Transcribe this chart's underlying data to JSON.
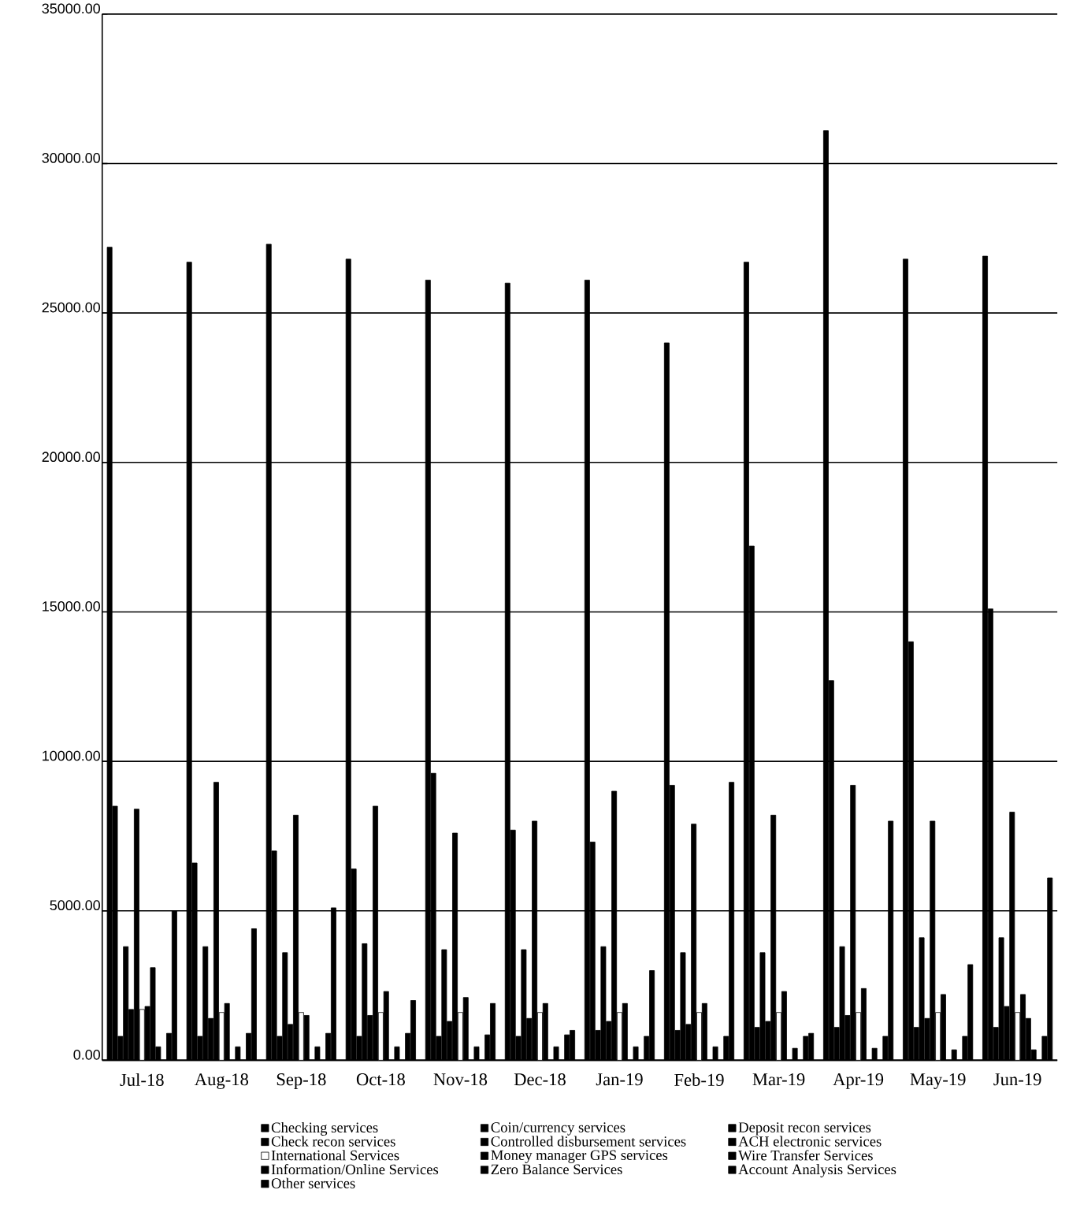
{
  "chart_data": {
    "type": "bar",
    "categories": [
      "Jul-18",
      "Aug-18",
      "Sep-18",
      "Oct-18",
      "Nov-18",
      "Dec-18",
      "Jan-19",
      "Feb-19",
      "Mar-19",
      "Apr-19",
      "May-19",
      "Jun-19"
    ],
    "ylim": [
      0,
      35000
    ],
    "yticks": [
      {
        "value": 0,
        "label": "0.00"
      },
      {
        "value": 5000,
        "label": "5000.00"
      },
      {
        "value": 10000,
        "label": "10000.00"
      },
      {
        "value": 15000,
        "label": "15000.00"
      },
      {
        "value": 20000,
        "label": "20000.00"
      },
      {
        "value": 25000,
        "label": "25000.00"
      },
      {
        "value": 30000,
        "label": "30000.00"
      },
      {
        "value": 35000,
        "label": "35000.00"
      }
    ],
    "grid": "y",
    "legend": "bottom",
    "series": [
      {
        "name": "Checking services",
        "color": "#000000",
        "values": [
          27200,
          26700,
          27300,
          26800,
          26100,
          26000,
          26100,
          24000,
          26700,
          31100,
          26800,
          26900
        ]
      },
      {
        "name": "Coin/currency services",
        "color": "#000000",
        "values": [
          8500,
          6600,
          7000,
          6400,
          9600,
          7700,
          7300,
          9200,
          17200,
          12700,
          14000,
          15100
        ]
      },
      {
        "name": "Deposit recon services",
        "color": "#000000",
        "values": [
          800,
          800,
          800,
          800,
          800,
          800,
          1000,
          1000,
          1100,
          1100,
          1100,
          1100
        ]
      },
      {
        "name": "Check recon services",
        "color": "#000000",
        "values": [
          3800,
          3800,
          3600,
          3900,
          3700,
          3700,
          3800,
          3600,
          3600,
          3800,
          4100,
          4100
        ]
      },
      {
        "name": "Controlled disbursement services",
        "color": "#000000",
        "values": [
          1700,
          1400,
          1200,
          1500,
          1300,
          1400,
          1300,
          1200,
          1300,
          1500,
          1400,
          1800
        ]
      },
      {
        "name": "ACH electronic services",
        "color": "#000000",
        "values": [
          8400,
          9300,
          8200,
          8500,
          7600,
          8000,
          9000,
          7900,
          8200,
          9200,
          8000,
          8300
        ]
      },
      {
        "name": "International Services",
        "color": "#ffffff",
        "values": [
          1700,
          1600,
          1600,
          1600,
          1600,
          1600,
          1600,
          1600,
          1600,
          1600,
          1600,
          1600
        ]
      },
      {
        "name": "Money manager GPS services",
        "color": "#000000",
        "values": [
          1800,
          1900,
          1500,
          2300,
          2100,
          1900,
          1900,
          1900,
          2300,
          2400,
          2200,
          2200
        ]
      },
      {
        "name": "Wire Transfer Services",
        "color": "#000000",
        "values": [
          3100,
          0,
          0,
          0,
          0,
          0,
          0,
          0,
          0,
          0,
          0,
          1400
        ]
      },
      {
        "name": "Information/Online Services",
        "color": "#000000",
        "values": [
          450,
          450,
          450,
          450,
          450,
          450,
          450,
          450,
          400,
          400,
          350,
          350
        ]
      },
      {
        "name": "Zero Balance Services",
        "color": "#000000",
        "values": [
          0,
          0,
          0,
          0,
          0,
          0,
          0,
          0,
          0,
          0,
          0,
          0
        ]
      },
      {
        "name": "Account Analysis Services",
        "color": "#000000",
        "values": [
          900,
          900,
          900,
          900,
          850,
          850,
          800,
          800,
          800,
          800,
          800,
          800
        ]
      },
      {
        "name": "Other services",
        "color": "#000000",
        "values": [
          5000,
          4400,
          5100,
          2000,
          1900,
          1000,
          3000,
          9300,
          900,
          8000,
          3200,
          6100
        ]
      }
    ]
  }
}
